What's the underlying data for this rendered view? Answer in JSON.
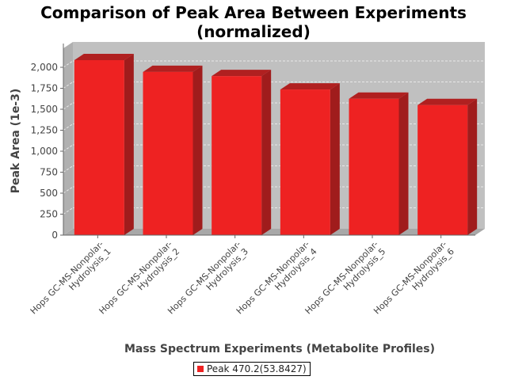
{
  "chart_data": {
    "type": "bar",
    "title_lines": [
      "Comparison of Peak Area Between Experiments",
      "(normalized)"
    ],
    "xlabel": "Mass Spectrum Experiments (Metabolite Profiles)",
    "ylabel": "Peak Area (1e-3)",
    "categories": [
      [
        "Hops GC-MS-Nonpolar-",
        "Hydrolysis_1"
      ],
      [
        "Hops GC-MS-Nonpolar-",
        "Hydrolysis_2"
      ],
      [
        "Hops GC-MS-Nonpolar-",
        "Hydrolysis_3"
      ],
      [
        "Hops GC-MS-Nonpolar-",
        "Hydrolysis_4"
      ],
      [
        "Hops GC-MS-Nonpolar-",
        "Hydrolysis_5"
      ],
      [
        "Hops GC-MS-Nonpolar-",
        "Hydrolysis_6"
      ]
    ],
    "series": [
      {
        "name": "Peak 470.2(53.8427)",
        "values": [
          2085,
          1945,
          1895,
          1735,
          1625,
          1550
        ]
      }
    ],
    "ylim": [
      0,
      2100
    ],
    "yticks": [
      0,
      250,
      500,
      750,
      1000,
      1250,
      1500,
      1750,
      2000
    ],
    "ytick_labels": [
      "0",
      "250",
      "500",
      "750",
      "1,000",
      "1,250",
      "1,500",
      "1,750",
      "2,000"
    ],
    "grid": true,
    "legend_position": "bottom",
    "colors": {
      "bar": "#ee2222",
      "bar_top": "#b02020",
      "bar_side": "#a01c1c",
      "plot_bg": "#c0c0c0",
      "grid": "#e8e8e8"
    }
  }
}
